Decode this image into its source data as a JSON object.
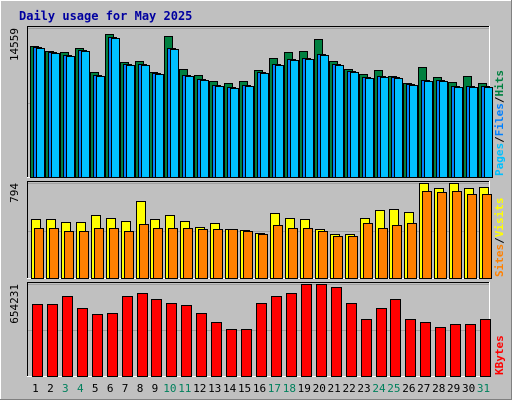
{
  "title": "Daily usage for May 2025",
  "colors": {
    "background": "#C0C0C0",
    "title": "#0000A0",
    "hits": "#008040",
    "files": "#0080FF",
    "pages": "#00C0FF",
    "visits": "#FFFF00",
    "sites": "#FF8000",
    "kbytes": "#FF0000",
    "weekend_day": "#00805C",
    "weekday": "#000000"
  },
  "chart_data": [
    {
      "type": "bar",
      "panel": "hits-files-pages",
      "categories": [
        "1",
        "2",
        "3",
        "4",
        "5",
        "6",
        "7",
        "8",
        "9",
        "10",
        "11",
        "12",
        "13",
        "14",
        "15",
        "16",
        "17",
        "18",
        "19",
        "20",
        "21",
        "22",
        "23",
        "24",
        "25",
        "26",
        "27",
        "28",
        "29",
        "30",
        "31"
      ],
      "axis_max_label": "14559",
      "ylim": [
        0,
        14559
      ],
      "series": [
        {
          "name": "Hits",
          "values": [
            12800,
            12300,
            12200,
            12600,
            10300,
            14000,
            11200,
            11300,
            10300,
            13800,
            10600,
            10000,
            9400,
            9200,
            9400,
            10500,
            11600,
            12200,
            12300,
            13500,
            11300,
            10600,
            10100,
            10500,
            9900,
            9200,
            10700,
            9800,
            9300,
            9900,
            9200
          ]
        },
        {
          "name": "Files",
          "values": [
            12700,
            12200,
            11900,
            12400,
            10000,
            13700,
            11000,
            11000,
            10200,
            12600,
            10000,
            9600,
            9000,
            8800,
            9000,
            10300,
            11000,
            11500,
            11600,
            12000,
            11000,
            10400,
            9800,
            9900,
            9800,
            9100,
            9500,
            9500,
            8900,
            8900,
            8900
          ]
        },
        {
          "name": "Pages",
          "values": [
            12600,
            12100,
            11800,
            12300,
            9900,
            13600,
            10900,
            10900,
            10100,
            12500,
            9900,
            9500,
            8900,
            8700,
            8900,
            10200,
            10900,
            11400,
            11500,
            11900,
            10900,
            10300,
            9700,
            9800,
            9700,
            9000,
            9400,
            9400,
            8800,
            8800,
            8800
          ]
        }
      ]
    },
    {
      "type": "bar",
      "panel": "visits-sites",
      "categories": [
        "1",
        "2",
        "3",
        "4",
        "5",
        "6",
        "7",
        "8",
        "9",
        "10",
        "11",
        "12",
        "13",
        "14",
        "15",
        "16",
        "17",
        "18",
        "19",
        "20",
        "21",
        "22",
        "23",
        "24",
        "25",
        "26",
        "27",
        "28",
        "29",
        "30",
        "31"
      ],
      "axis_max_label": "794",
      "ylim": [
        0,
        794
      ],
      "series": [
        {
          "name": "Visits",
          "values": [
            490,
            490,
            470,
            470,
            525,
            500,
            480,
            640,
            490,
            525,
            475,
            430,
            460,
            410,
            400,
            380,
            540,
            500,
            490,
            410,
            370,
            370,
            500,
            565,
            580,
            555,
            798,
            755,
            798,
            755,
            760
          ]
        },
        {
          "name": "Sites",
          "values": [
            420,
            420,
            390,
            390,
            420,
            420,
            390,
            450,
            420,
            420,
            420,
            410,
            410,
            410,
            390,
            370,
            440,
            420,
            420,
            390,
            350,
            350,
            460,
            420,
            440,
            460,
            730,
            720,
            730,
            700,
            700
          ]
        }
      ]
    },
    {
      "type": "bar",
      "panel": "kbytes",
      "categories": [
        "1",
        "2",
        "3",
        "4",
        "5",
        "6",
        "7",
        "8",
        "9",
        "10",
        "11",
        "12",
        "13",
        "14",
        "15",
        "16",
        "17",
        "18",
        "19",
        "20",
        "21",
        "22",
        "23",
        "24",
        "25",
        "26",
        "27",
        "28",
        "29",
        "30",
        "31"
      ],
      "axis_max_label": "654231",
      "ylim": [
        0,
        654231
      ],
      "series": [
        {
          "name": "KBytes",
          "values": [
            512000,
            512000,
            570000,
            485000,
            441000,
            449000,
            568000,
            593000,
            547000,
            517000,
            507000,
            449000,
            382000,
            336000,
            336000,
            521000,
            568000,
            593000,
            674000,
            686000,
            632000,
            521000,
            405000,
            485000,
            547000,
            405000,
            382000,
            350000,
            370000,
            370000,
            405000
          ]
        }
      ]
    }
  ],
  "legends": {
    "panel1": [
      {
        "label": "Pages",
        "color_key": "pages"
      },
      {
        "label": "/",
        "color_key": "weekday"
      },
      {
        "label": "Files",
        "color_key": "files"
      },
      {
        "label": "/",
        "color_key": "weekday"
      },
      {
        "label": "Hits",
        "color_key": "hits"
      }
    ],
    "panel2": [
      {
        "label": "Sites",
        "color_key": "sites"
      },
      {
        "label": "/",
        "color_key": "weekday"
      },
      {
        "label": "Visits",
        "color_key": "visits"
      }
    ],
    "panel3": [
      {
        "label": "KBytes",
        "color_key": "kbytes"
      }
    ]
  },
  "weekend_days": [
    "3",
    "4",
    "10",
    "11",
    "17",
    "18",
    "24",
    "25",
    "31"
  ]
}
